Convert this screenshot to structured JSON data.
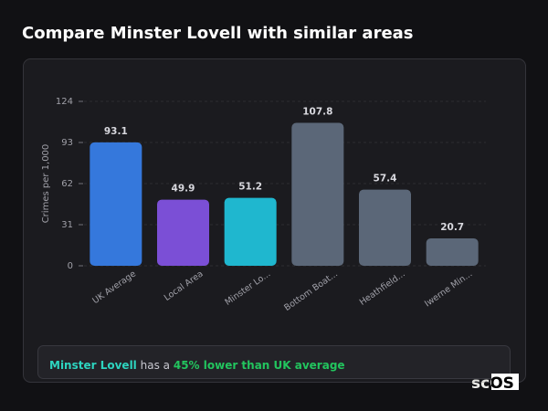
{
  "title": "Compare Minster Lovell with similar areas",
  "chart_data": {
    "type": "bar",
    "y_label": "Crimes per 1,000",
    "categories": [
      "UK Average",
      "Local Area",
      "Minster Lo...",
      "Bottom Boat...",
      "Heathfield...",
      "Iwerne Min..."
    ],
    "values": [
      93.1,
      49.9,
      51.2,
      107.8,
      57.4,
      20.7
    ],
    "colors": [
      "#3578dc",
      "#7b4fd6",
      "#1fb7cf",
      "#5b6778",
      "#5b6778",
      "#5b6778"
    ],
    "ylim": [
      0,
      124
    ],
    "yticks": [
      0,
      31,
      62,
      93,
      124
    ],
    "grid": true
  },
  "summary": {
    "area": "Minster Lovell",
    "text": "has a",
    "highlight": "45% lower than UK average"
  },
  "logo": "scOS"
}
